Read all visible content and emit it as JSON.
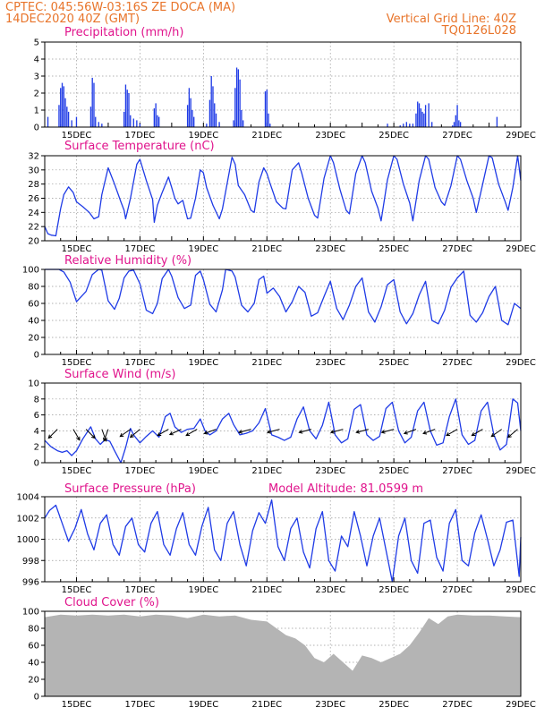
{
  "header": {
    "station": "CPTEC:   045:56W-03:16S   ZE DOCA (MA)",
    "date": "14DEC2020 40Z (GMT)",
    "grid_note": "Vertical Grid Line: 40Z",
    "code": "TQ0126L028"
  },
  "colors": {
    "header": "#e8742a",
    "title": "#e0148c",
    "series": "#1f3be6",
    "cloud": "#b4b4b4"
  },
  "x_axis": {
    "start_day": 14.0,
    "end_day": 29.0,
    "ticks": [
      {
        "day": 15,
        "label": "15DEC"
      },
      {
        "day": 17,
        "label": "17DEC"
      },
      {
        "day": 19,
        "label": "19DEC"
      },
      {
        "day": 21,
        "label": "21DEC"
      },
      {
        "day": 23,
        "label": "23DEC"
      },
      {
        "day": 25,
        "label": "25DEC"
      },
      {
        "day": 27,
        "label": "27DEC"
      },
      {
        "day": 29,
        "label": "29DEC"
      }
    ]
  },
  "chart_data": [
    {
      "type": "bar",
      "title": "Precipitation (mm/h)",
      "ylim": [
        0,
        5
      ],
      "yticks": [
        0,
        1,
        2,
        3,
        4,
        5
      ],
      "grid": true,
      "x": [
        14.1,
        14.45,
        14.5,
        14.55,
        14.6,
        14.65,
        14.7,
        14.75,
        14.85,
        15.0,
        15.45,
        15.5,
        15.55,
        15.6,
        15.7,
        15.8,
        16.5,
        16.55,
        16.6,
        16.65,
        16.7,
        16.8,
        16.9,
        17.0,
        17.45,
        17.5,
        17.55,
        17.6,
        18.5,
        18.55,
        18.6,
        18.65,
        18.7,
        19.1,
        19.2,
        19.25,
        19.3,
        19.35,
        19.4,
        19.5,
        19.95,
        20.0,
        20.05,
        20.1,
        20.15,
        20.2,
        20.25,
        20.95,
        21.0,
        21.05,
        21.1,
        24.8,
        25.2,
        25.3,
        25.4,
        25.5,
        25.6,
        25.7,
        25.75,
        25.8,
        25.85,
        25.9,
        25.95,
        26.0,
        26.1,
        26.2,
        26.85,
        26.9,
        26.95,
        27.0,
        27.05,
        27.1,
        28.25
      ],
      "values": [
        0.6,
        1.3,
        2.3,
        2.6,
        2.4,
        1.7,
        1.2,
        0.9,
        0.4,
        0.6,
        1.2,
        2.9,
        2.6,
        0.6,
        0.3,
        0.2,
        0.9,
        2.5,
        2.2,
        2.0,
        0.7,
        0.5,
        0.4,
        0.2,
        1.1,
        1.4,
        0.7,
        0.6,
        1.3,
        2.3,
        1.7,
        1.0,
        0.6,
        0.2,
        1.6,
        3.0,
        2.4,
        1.4,
        0.8,
        0.3,
        0.4,
        2.3,
        3.5,
        3.4,
        2.8,
        1.0,
        0.4,
        2.1,
        2.2,
        0.8,
        0.2,
        0.2,
        0.1,
        0.2,
        0.3,
        0.2,
        0.2,
        0.8,
        1.5,
        1.4,
        1.1,
        0.9,
        0.8,
        1.3,
        1.4,
        0.3,
        0.1,
        0.3,
        0.7,
        1.3,
        0.4,
        0.3,
        0.6
      ]
    },
    {
      "type": "line",
      "title": "Surface Temperature (nC)",
      "ylim": [
        20,
        32
      ],
      "yticks": [
        20,
        22,
        24,
        26,
        28,
        30,
        32
      ],
      "grid": true,
      "x": [
        14.0,
        14.1,
        14.2,
        14.35,
        14.5,
        14.6,
        14.75,
        14.9,
        15.0,
        15.2,
        15.4,
        15.55,
        15.7,
        15.8,
        16.0,
        16.2,
        16.4,
        16.5,
        16.55,
        16.7,
        16.9,
        17.0,
        17.2,
        17.4,
        17.45,
        17.55,
        17.7,
        17.9,
        18.0,
        18.1,
        18.2,
        18.35,
        18.5,
        18.6,
        18.75,
        18.9,
        19.0,
        19.1,
        19.3,
        19.5,
        19.6,
        19.9,
        20.0,
        20.1,
        20.3,
        20.5,
        20.6,
        20.75,
        20.9,
        21.0,
        21.1,
        21.3,
        21.5,
        21.6,
        21.8,
        22.0,
        22.1,
        22.3,
        22.5,
        22.6,
        22.8,
        23.0,
        23.1,
        23.3,
        23.5,
        23.6,
        23.8,
        24.0,
        24.1,
        24.3,
        24.5,
        24.6,
        24.8,
        25.0,
        25.1,
        25.3,
        25.5,
        25.6,
        25.8,
        26.0,
        26.1,
        26.3,
        26.5,
        26.6,
        26.8,
        27.0,
        27.1,
        27.3,
        27.5,
        27.6,
        27.8,
        28.0,
        28.1,
        28.3,
        28.5,
        28.6,
        28.75,
        28.9,
        29.0
      ],
      "values": [
        22.0,
        21.0,
        20.8,
        20.7,
        24.5,
        26.5,
        27.6,
        26.8,
        25.5,
        24.8,
        24.0,
        23.1,
        23.4,
        26.5,
        30.3,
        28.0,
        25.5,
        24.3,
        23.1,
        26.0,
        30.8,
        31.5,
        28.5,
        25.8,
        22.6,
        25.0,
        26.8,
        29.0,
        27.5,
        26.0,
        25.2,
        25.7,
        23.1,
        23.2,
        26.0,
        30.0,
        29.6,
        27.5,
        25.0,
        23.1,
        24.5,
        31.8,
        30.8,
        27.8,
        26.5,
        24.3,
        24.0,
        28.3,
        30.3,
        29.5,
        28.1,
        25.5,
        24.6,
        24.5,
        30.0,
        31.0,
        29.5,
        26.0,
        23.6,
        23.2,
        28.8,
        32.0,
        31.0,
        27.3,
        24.3,
        23.8,
        29.5,
        32.0,
        31.0,
        27.0,
        24.6,
        22.8,
        28.6,
        32.0,
        31.5,
        28.0,
        25.3,
        22.8,
        28.5,
        32.0,
        31.5,
        27.5,
        25.5,
        25.0,
        27.8,
        32.0,
        31.5,
        28.5,
        26.0,
        24.0,
        28.0,
        32.0,
        31.7,
        28.0,
        25.6,
        24.3,
        27.5,
        32.0,
        28.5
      ]
    },
    {
      "type": "line",
      "title": "Relative Humidity (%)",
      "ylim": [
        0,
        100
      ],
      "yticks": [
        0,
        20,
        40,
        60,
        80,
        100
      ],
      "grid": true,
      "x": [
        14.0,
        14.1,
        14.3,
        14.45,
        14.6,
        14.8,
        15.0,
        15.3,
        15.5,
        15.6,
        15.7,
        15.8,
        16.0,
        16.2,
        16.35,
        16.5,
        16.65,
        16.8,
        17.0,
        17.2,
        17.4,
        17.55,
        17.7,
        17.9,
        18.0,
        18.2,
        18.4,
        18.6,
        18.75,
        18.9,
        19.0,
        19.2,
        19.4,
        19.6,
        19.7,
        19.9,
        20.0,
        20.2,
        20.4,
        20.6,
        20.75,
        20.9,
        21.0,
        21.2,
        21.4,
        21.6,
        21.8,
        22.0,
        22.2,
        22.4,
        22.6,
        22.8,
        23.0,
        23.2,
        23.4,
        23.6,
        23.8,
        24.0,
        24.2,
        24.4,
        24.6,
        24.8,
        25.0,
        25.2,
        25.4,
        25.6,
        25.8,
        26.0,
        26.2,
        26.4,
        26.6,
        26.8,
        27.0,
        27.2,
        27.4,
        27.6,
        27.8,
        28.0,
        28.2,
        28.4,
        28.6,
        28.8,
        29.0
      ],
      "values": [
        100,
        100,
        100,
        100,
        97,
        85,
        62,
        74,
        94,
        97,
        100,
        99,
        63,
        53,
        66,
        90,
        98,
        99,
        83,
        52,
        48,
        60,
        89,
        100,
        92,
        67,
        54,
        58,
        93,
        98,
        88,
        59,
        50,
        76,
        100,
        98,
        91,
        58,
        50,
        60,
        88,
        92,
        72,
        78,
        68,
        50,
        62,
        80,
        73,
        45,
        49,
        68,
        86,
        54,
        41,
        58,
        80,
        90,
        50,
        38,
        56,
        82,
        88,
        50,
        36,
        48,
        70,
        86,
        40,
        36,
        52,
        79,
        90,
        98,
        46,
        38,
        49,
        68,
        80,
        40,
        35,
        60,
        54
      ]
    },
    {
      "type": "line",
      "title": "Surface Wind (m/s)",
      "ylim": [
        0,
        10
      ],
      "yticks": [
        0,
        2,
        4,
        6,
        8,
        10
      ],
      "grid": true,
      "x": [
        14.0,
        14.2,
        14.4,
        14.55,
        14.7,
        14.85,
        15.0,
        15.2,
        15.45,
        15.6,
        15.75,
        15.9,
        16.05,
        16.2,
        16.4,
        16.55,
        16.7,
        16.8,
        17.0,
        17.2,
        17.4,
        17.6,
        17.8,
        17.95,
        18.1,
        18.3,
        18.5,
        18.7,
        18.9,
        19.05,
        19.2,
        19.4,
        19.6,
        19.8,
        19.95,
        20.15,
        20.35,
        20.55,
        20.75,
        20.95,
        21.15,
        21.35,
        21.55,
        21.75,
        21.95,
        22.15,
        22.35,
        22.55,
        22.75,
        22.95,
        23.15,
        23.35,
        23.55,
        23.75,
        23.95,
        24.15,
        24.35,
        24.55,
        24.75,
        24.95,
        25.15,
        25.35,
        25.55,
        25.75,
        25.95,
        26.15,
        26.35,
        26.55,
        26.75,
        26.95,
        27.15,
        27.35,
        27.55,
        27.75,
        27.95,
        28.15,
        28.35,
        28.55,
        28.75,
        28.9,
        29.0
      ],
      "values": [
        2.8,
        2.0,
        1.5,
        1.3,
        1.5,
        0.9,
        1.5,
        3.0,
        4.5,
        3.0,
        2.3,
        2.9,
        2.7,
        1.5,
        0.0,
        1.9,
        4.3,
        3.5,
        2.5,
        3.3,
        4.0,
        3.2,
        5.8,
        6.2,
        4.5,
        3.8,
        4.2,
        4.3,
        5.5,
        4.0,
        3.5,
        4.0,
        5.5,
        6.2,
        4.8,
        3.5,
        3.7,
        4.0,
        5.0,
        6.8,
        3.5,
        3.2,
        2.8,
        3.2,
        5.5,
        7.0,
        4.0,
        3.0,
        4.7,
        7.6,
        3.5,
        2.5,
        3.0,
        6.7,
        7.3,
        3.5,
        2.8,
        3.3,
        6.8,
        7.6,
        4.0,
        2.5,
        3.2,
        6.5,
        7.6,
        4.0,
        2.2,
        2.5,
        5.8,
        8.0,
        3.5,
        2.3,
        2.8,
        6.5,
        7.6,
        3.5,
        1.6,
        2.3,
        8.0,
        7.5,
        4.0
      ],
      "arrows": [
        {
          "day": 14.4,
          "dir_deg": 225
        },
        {
          "day": 14.9,
          "dir_deg": 150
        },
        {
          "day": 15.3,
          "dir_deg": 135
        },
        {
          "day": 15.8,
          "dir_deg": 160
        },
        {
          "day": 16.0,
          "dir_deg": 200
        },
        {
          "day": 16.7,
          "dir_deg": 235
        },
        {
          "day": 17.0,
          "dir_deg": 230
        },
        {
          "day": 17.9,
          "dir_deg": 240
        },
        {
          "day": 18.3,
          "dir_deg": 245
        },
        {
          "day": 18.8,
          "dir_deg": 240
        },
        {
          "day": 19.4,
          "dir_deg": 250
        },
        {
          "day": 20.5,
          "dir_deg": 255
        },
        {
          "day": 21.4,
          "dir_deg": 255
        },
        {
          "day": 22.4,
          "dir_deg": 255
        },
        {
          "day": 23.4,
          "dir_deg": 255
        },
        {
          "day": 24.2,
          "dir_deg": 255
        },
        {
          "day": 25.0,
          "dir_deg": 255
        },
        {
          "day": 25.7,
          "dir_deg": 250
        },
        {
          "day": 26.3,
          "dir_deg": 250
        },
        {
          "day": 27.0,
          "dir_deg": 240
        },
        {
          "day": 27.8,
          "dir_deg": 240
        },
        {
          "day": 28.4,
          "dir_deg": 235
        },
        {
          "day": 28.9,
          "dir_deg": 230
        }
      ]
    },
    {
      "type": "line",
      "title": "Surface Pressure (hPa)",
      "annotation": "Model Altitude: 81.0599 m",
      "ylim": [
        996,
        1004
      ],
      "yticks": [
        996,
        998,
        1000,
        1002,
        1004
      ],
      "grid": true,
      "x": [
        14.0,
        14.15,
        14.35,
        14.55,
        14.75,
        14.95,
        15.15,
        15.35,
        15.55,
        15.75,
        15.95,
        16.15,
        16.35,
        16.55,
        16.75,
        16.95,
        17.15,
        17.35,
        17.55,
        17.75,
        17.95,
        18.15,
        18.35,
        18.55,
        18.75,
        18.95,
        19.15,
        19.35,
        19.55,
        19.75,
        19.95,
        20.15,
        20.35,
        20.55,
        20.75,
        20.95,
        21.15,
        21.35,
        21.55,
        21.75,
        21.95,
        22.15,
        22.35,
        22.55,
        22.75,
        22.95,
        23.15,
        23.35,
        23.55,
        23.75,
        23.95,
        24.15,
        24.35,
        24.55,
        24.75,
        24.95,
        25.15,
        25.35,
        25.55,
        25.75,
        25.95,
        26.15,
        26.35,
        26.55,
        26.75,
        26.95,
        27.15,
        27.35,
        27.55,
        27.75,
        27.95,
        28.15,
        28.35,
        28.55,
        28.75,
        28.95,
        29.0
      ],
      "values": [
        1002.0,
        1002.7,
        1003.2,
        1001.5,
        999.8,
        1001.0,
        1002.8,
        1000.5,
        999.0,
        1001.5,
        1002.3,
        999.5,
        998.5,
        1001.2,
        1002.0,
        999.5,
        998.8,
        1001.5,
        1002.6,
        999.5,
        998.5,
        1001.0,
        1002.5,
        999.5,
        998.5,
        1001.2,
        1003.0,
        999.0,
        998.0,
        1001.5,
        1002.6,
        999.5,
        997.5,
        1000.8,
        1002.5,
        1001.5,
        1003.7,
        999.3,
        998.0,
        1001.0,
        1002.0,
        998.8,
        997.3,
        1001.0,
        1002.6,
        998.0,
        997.0,
        1000.3,
        999.3,
        1002.6,
        1000.3,
        997.5,
        1000.3,
        1002.0,
        999.0,
        996.0,
        1000.3,
        1002.0,
        998.0,
        996.8,
        1001.5,
        1001.8,
        998.3,
        997.0,
        1001.5,
        1002.8,
        998.0,
        997.5,
        1000.6,
        1002.3,
        1000.0,
        997.5,
        999.0,
        1001.6,
        1001.8,
        996.5,
        1000.2
      ]
    },
    {
      "type": "bar",
      "title": "Cloud Cover (%)",
      "ylim": [
        0,
        100
      ],
      "yticks": [
        0,
        20,
        40,
        60,
        80,
        100
      ],
      "grid": true,
      "x": [
        14.0,
        14.5,
        15.0,
        15.5,
        16.0,
        16.5,
        17.0,
        17.5,
        18.0,
        18.5,
        19.0,
        19.5,
        20.0,
        20.5,
        21.0,
        21.3,
        21.6,
        21.9,
        22.2,
        22.5,
        22.8,
        23.1,
        23.4,
        23.7,
        24.0,
        24.3,
        24.6,
        24.9,
        25.2,
        25.5,
        25.8,
        26.1,
        26.4,
        26.7,
        27.0,
        27.5,
        28.0,
        28.5,
        29.0
      ],
      "values": [
        93,
        96,
        95,
        96,
        95,
        96,
        94,
        96,
        95,
        92,
        96,
        94,
        95,
        90,
        88,
        80,
        72,
        68,
        60,
        45,
        40,
        50,
        40,
        30,
        48,
        45,
        40,
        45,
        50,
        60,
        75,
        92,
        85,
        94,
        96,
        95,
        95,
        94,
        93
      ]
    }
  ]
}
